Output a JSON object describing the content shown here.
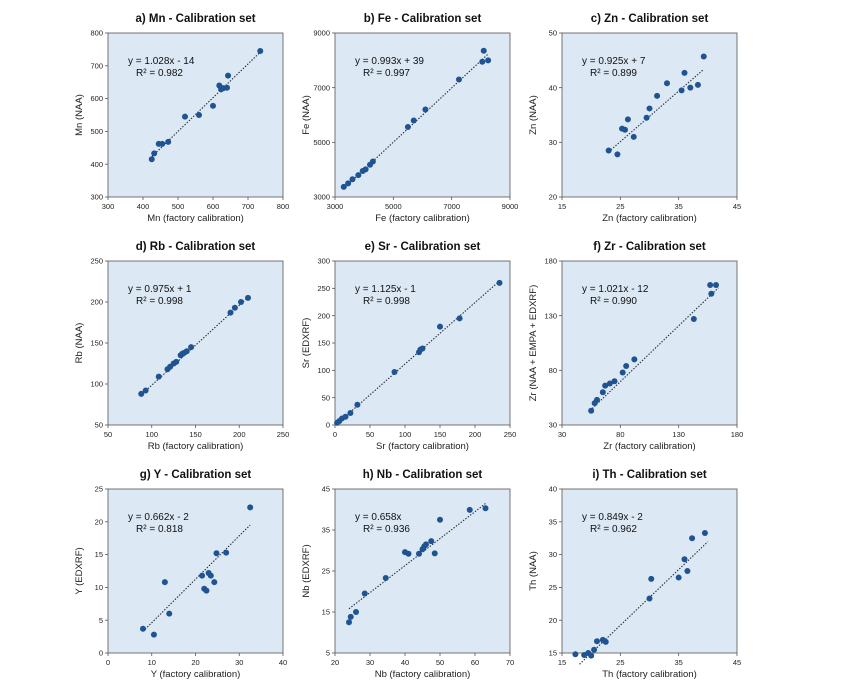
{
  "chart_data": [
    {
      "type": "scatter",
      "title": "a) Mn - Calibration set",
      "xlabel": "Mn (factory calibration)",
      "ylabel": "Mn (NAA)",
      "xlim": [
        300,
        800
      ],
      "ylim": [
        300,
        800
      ],
      "xticks": [
        300,
        400,
        500,
        600,
        700,
        800
      ],
      "yticks": [
        300,
        400,
        500,
        600,
        700,
        800
      ],
      "equation": "y = 1.028x - 14",
      "r2": "R² = 0.982",
      "trend": {
        "slope": 1.028,
        "intercept": -14,
        "x0": 420,
        "x1": 735
      },
      "points": [
        [
          425,
          415
        ],
        [
          432,
          433
        ],
        [
          445,
          462
        ],
        [
          455,
          462
        ],
        [
          472,
          468
        ],
        [
          520,
          545
        ],
        [
          560,
          550
        ],
        [
          600,
          578
        ],
        [
          618,
          640
        ],
        [
          623,
          628
        ],
        [
          630,
          632
        ],
        [
          640,
          633
        ],
        [
          643,
          670
        ],
        [
          735,
          745
        ]
      ]
    },
    {
      "type": "scatter",
      "title": "b) Fe - Calibration set",
      "xlabel": "Fe (factory calibration)",
      "ylabel": "Fe (NAA)",
      "xlim": [
        3000,
        9000
      ],
      "ylim": [
        3000,
        9000
      ],
      "xticks": [
        3000,
        5000,
        7000,
        9000
      ],
      "yticks": [
        3000,
        5000,
        7000,
        9000
      ],
      "equation": "y = 0.993x + 39",
      "r2": "R² = 0.997",
      "trend": {
        "slope": 0.993,
        "intercept": 39,
        "x0": 3300,
        "x1": 8250
      },
      "points": [
        [
          3300,
          3370
        ],
        [
          3450,
          3500
        ],
        [
          3600,
          3650
        ],
        [
          3800,
          3800
        ],
        [
          3950,
          3950
        ],
        [
          4050,
          4010
        ],
        [
          4200,
          4180
        ],
        [
          4300,
          4300
        ],
        [
          5500,
          5560
        ],
        [
          5700,
          5800
        ],
        [
          6100,
          6200
        ],
        [
          7250,
          7300
        ],
        [
          8050,
          7950
        ],
        [
          8100,
          8350
        ],
        [
          8250,
          8000
        ]
      ]
    },
    {
      "type": "scatter",
      "title": "c) Zn - Calibration set",
      "xlabel": "Zn (factory calibration)",
      "ylabel": "Zn (NAA)",
      "xlim": [
        15,
        45
      ],
      "ylim": [
        20,
        50
      ],
      "xticks": [
        15,
        25,
        35,
        45
      ],
      "yticks": [
        20,
        30,
        40,
        50
      ],
      "equation": "y = 0.925x + 7",
      "r2": "R² = 0.899",
      "trend": {
        "slope": 0.925,
        "intercept": 7,
        "x0": 23,
        "x1": 39.3
      },
      "points": [
        [
          23,
          28.5
        ],
        [
          24.5,
          27.8
        ],
        [
          25.3,
          32.5
        ],
        [
          25.8,
          32.3
        ],
        [
          26.3,
          34.2
        ],
        [
          27.3,
          31
        ],
        [
          29.5,
          34.5
        ],
        [
          30,
          36.2
        ],
        [
          31.3,
          38.5
        ],
        [
          33,
          40.8
        ],
        [
          35.5,
          39.5
        ],
        [
          36,
          42.7
        ],
        [
          37,
          40
        ],
        [
          38.3,
          40.5
        ],
        [
          39.3,
          45.7
        ]
      ]
    },
    {
      "type": "scatter",
      "title": "d) Rb - Calibration set",
      "xlabel": "Rb (factory calibration)",
      "ylabel": "Rb (NAA)",
      "xlim": [
        50,
        250
      ],
      "ylim": [
        50,
        250
      ],
      "xticks": [
        50,
        100,
        150,
        200,
        250
      ],
      "yticks": [
        50,
        100,
        150,
        200,
        250
      ],
      "equation": "y = 0.975x + 1",
      "r2": "R² = 0.998",
      "trend": {
        "slope": 0.975,
        "intercept": 1,
        "x0": 88,
        "x1": 212
      },
      "points": [
        [
          88,
          88
        ],
        [
          93,
          92
        ],
        [
          108,
          109
        ],
        [
          118,
          118
        ],
        [
          121,
          121
        ],
        [
          125,
          125
        ],
        [
          128,
          127
        ],
        [
          133,
          135
        ],
        [
          135,
          137
        ],
        [
          137,
          138
        ],
        [
          140,
          140
        ],
        [
          145,
          145
        ],
        [
          190,
          187
        ],
        [
          195,
          193
        ],
        [
          202,
          200
        ],
        [
          210,
          205
        ]
      ]
    },
    {
      "type": "scatter",
      "title": "e) Sr - Calibration set",
      "xlabel": "Sr (factory calibration)",
      "ylabel": "Sr (EDXRF)",
      "xlim": [
        0,
        250
      ],
      "ylim": [
        0,
        300
      ],
      "xticks": [
        0,
        50,
        100,
        150,
        200,
        250
      ],
      "yticks": [
        0,
        50,
        100,
        150,
        200,
        250,
        300
      ],
      "equation": "y = 1.125x - 1",
      "r2": "R² = 0.998",
      "trend": {
        "slope": 1.125,
        "intercept": -1,
        "x0": 2,
        "x1": 236
      },
      "points": [
        [
          3,
          4
        ],
        [
          6,
          7
        ],
        [
          10,
          12
        ],
        [
          15,
          15
        ],
        [
          22,
          22
        ],
        [
          32,
          37
        ],
        [
          85,
          97
        ],
        [
          120,
          133
        ],
        [
          122,
          138
        ],
        [
          125,
          140
        ],
        [
          150,
          180
        ],
        [
          178,
          195
        ],
        [
          235,
          260
        ]
      ]
    },
    {
      "type": "scatter",
      "title": "f) Zr - Calibration set",
      "xlabel": "Zr (factory calibration)",
      "ylabel": "Zr (NAA + EMPA + EDXRF)",
      "xlim": [
        30,
        180
      ],
      "ylim": [
        30,
        180
      ],
      "xticks": [
        30,
        80,
        130,
        180
      ],
      "yticks": [
        30,
        80,
        130,
        180
      ],
      "equation": "y = 1.021x - 12",
      "r2": "R² = 0.990",
      "trend": {
        "slope": 1.021,
        "intercept": -12,
        "x0": 54,
        "x1": 164
      },
      "points": [
        [
          55,
          43
        ],
        [
          58,
          50
        ],
        [
          60,
          53
        ],
        [
          65,
          60
        ],
        [
          67,
          66
        ],
        [
          71,
          68
        ],
        [
          75,
          70
        ],
        [
          82,
          78
        ],
        [
          85,
          84
        ],
        [
          92,
          90
        ],
        [
          143,
          127
        ],
        [
          157,
          158
        ],
        [
          158,
          150
        ],
        [
          162,
          158
        ]
      ]
    },
    {
      "type": "scatter",
      "title": "g) Y - Calibration set",
      "xlabel": "Y (factory calibration)",
      "ylabel": "Y (EDXRF)",
      "xlim": [
        0,
        40
      ],
      "ylim": [
        0,
        25
      ],
      "xticks": [
        0,
        10,
        20,
        30,
        40
      ],
      "yticks": [
        0,
        5,
        10,
        15,
        20,
        25
      ],
      "equation": "y = 0.662x - 2",
      "r2": "R² = 0.818",
      "trend": {
        "slope": 0.662,
        "intercept": -2,
        "x0": 8,
        "x1": 32.5
      },
      "points": [
        [
          8,
          3.7
        ],
        [
          10.5,
          2.8
        ],
        [
          13,
          10.8
        ],
        [
          14,
          6
        ],
        [
          21.5,
          11.8
        ],
        [
          22,
          9.8
        ],
        [
          22.5,
          9.5
        ],
        [
          23,
          12.2
        ],
        [
          23.5,
          11.8
        ],
        [
          24.3,
          10.8
        ],
        [
          24.8,
          15.2
        ],
        [
          27,
          15.3
        ],
        [
          32.5,
          22.2
        ]
      ]
    },
    {
      "type": "scatter",
      "title": "h) Nb - Calibration set",
      "xlabel": "Nb (factory calibration)",
      "ylabel": "Nb (EDXRF)",
      "xlim": [
        20,
        70
      ],
      "ylim": [
        5,
        45
      ],
      "xticks": [
        20,
        30,
        40,
        50,
        60,
        70
      ],
      "yticks": [
        5,
        15,
        25,
        35,
        45
      ],
      "equation": "y = 0.658x",
      "r2": "R² = 0.936",
      "trend": {
        "slope": 0.658,
        "intercept": 0,
        "x0": 24,
        "x1": 63
      },
      "points": [
        [
          24,
          12.5
        ],
        [
          24.5,
          13.8
        ],
        [
          26,
          15
        ],
        [
          28.5,
          19.5
        ],
        [
          34.5,
          23.3
        ],
        [
          40,
          29.6
        ],
        [
          41,
          29.2
        ],
        [
          44,
          29.2
        ],
        [
          45,
          30.3
        ],
        [
          45.5,
          31
        ],
        [
          46,
          31.5
        ],
        [
          47.5,
          32.3
        ],
        [
          48.5,
          29.3
        ],
        [
          50,
          37.5
        ],
        [
          58.5,
          39.9
        ],
        [
          63,
          40.3
        ]
      ]
    },
    {
      "type": "scatter",
      "title": "i) Th - Calibration set",
      "xlabel": "Th (factory calibration)",
      "ylabel": "Th (NAA)",
      "xlim": [
        15,
        45
      ],
      "ylim": [
        15,
        40
      ],
      "xticks": [
        15,
        25,
        35,
        45
      ],
      "yticks": [
        15,
        20,
        25,
        30,
        35,
        40
      ],
      "equation": "y = 0.849x - 2",
      "r2": "R² = 0.962",
      "trend": {
        "slope": 0.849,
        "intercept": -2,
        "x0": 18,
        "x1": 40
      },
      "points": [
        [
          17.3,
          14.8
        ],
        [
          18.8,
          14.7
        ],
        [
          19.5,
          15
        ],
        [
          20,
          14.6
        ],
        [
          20.5,
          15.5
        ],
        [
          21,
          16.8
        ],
        [
          22,
          17
        ],
        [
          22.5,
          16.7
        ],
        [
          30,
          23.3
        ],
        [
          30.3,
          26.3
        ],
        [
          35,
          26.5
        ],
        [
          36,
          29.3
        ],
        [
          36.5,
          27.5
        ],
        [
          37.3,
          32.5
        ],
        [
          39.5,
          33.3
        ]
      ]
    }
  ]
}
